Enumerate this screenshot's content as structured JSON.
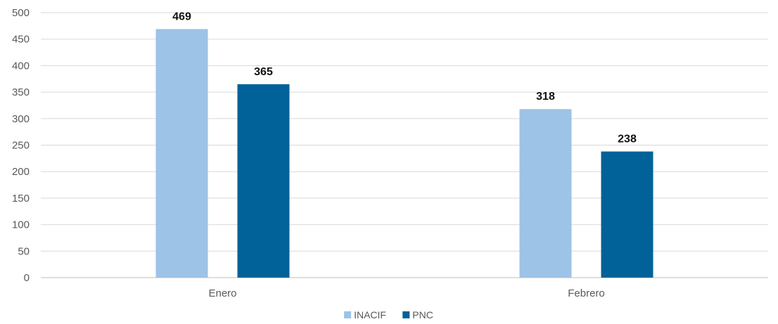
{
  "chart_data": {
    "type": "bar",
    "categories": [
      "Enero",
      "Febrero"
    ],
    "series": [
      {
        "name": "INACIF",
        "values": [
          469,
          318
        ],
        "color": "#9DC3E6"
      },
      {
        "name": "PNC",
        "values": [
          365,
          238
        ],
        "color": "#006298"
      }
    ],
    "ylim": [
      0,
      500
    ],
    "yticks": [
      0,
      50,
      100,
      150,
      200,
      250,
      300,
      350,
      400,
      450,
      500
    ],
    "grid": true,
    "legend": "bottom-center",
    "data_labels": true,
    "title": "",
    "xlabel": "",
    "ylabel": ""
  }
}
